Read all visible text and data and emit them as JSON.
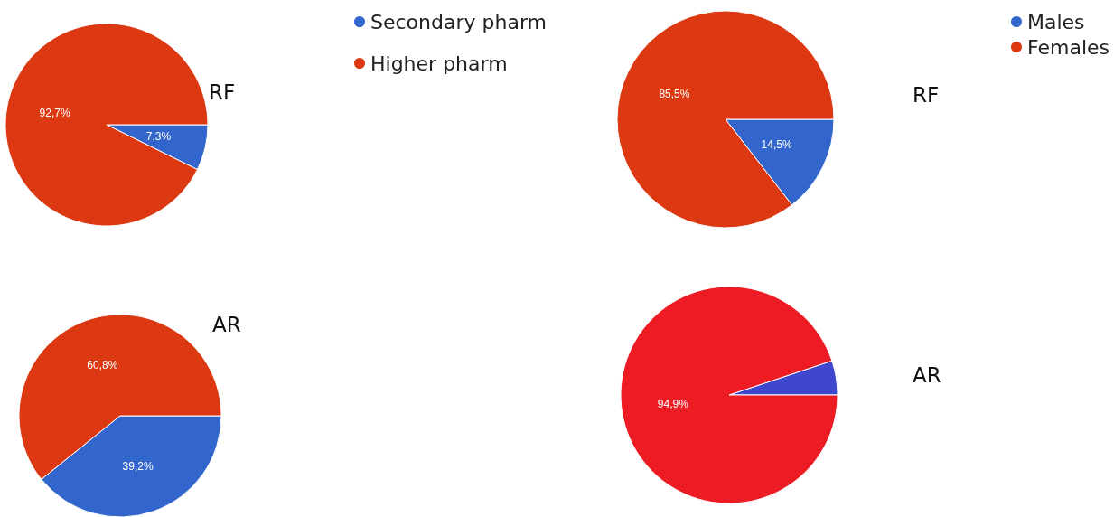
{
  "chart_data": [
    {
      "type": "pie",
      "title": "RF",
      "categories": [
        "Secondary pharm",
        "Higher pharm"
      ],
      "values": [
        7.3,
        92.7
      ],
      "colors": [
        "#3366cc",
        "#dc3912"
      ],
      "value_labels": [
        "7,3%",
        "92,7%"
      ],
      "legend": "top"
    },
    {
      "type": "pie",
      "title": "RF",
      "categories": [
        "Males",
        "Females"
      ],
      "values": [
        14.5,
        85.5
      ],
      "colors": [
        "#3366cc",
        "#dc3912"
      ],
      "value_labels": [
        "14,5%",
        "85,5%"
      ],
      "legend": "top right"
    },
    {
      "type": "pie",
      "title": "AR",
      "categories": [
        null,
        null
      ],
      "values": [
        39.2,
        60.8
      ],
      "colors": [
        "#3366cc",
        "#dc3912"
      ],
      "value_labels": [
        "39,2%",
        "60,8%"
      ]
    },
    {
      "type": "pie",
      "title": "AR",
      "categories": [
        null,
        null
      ],
      "values": [
        5.1,
        94.9
      ],
      "colors": [
        "#3f48cc",
        "#ed1c24"
      ],
      "value_labels": [
        null,
        "94,9%"
      ]
    }
  ]
}
